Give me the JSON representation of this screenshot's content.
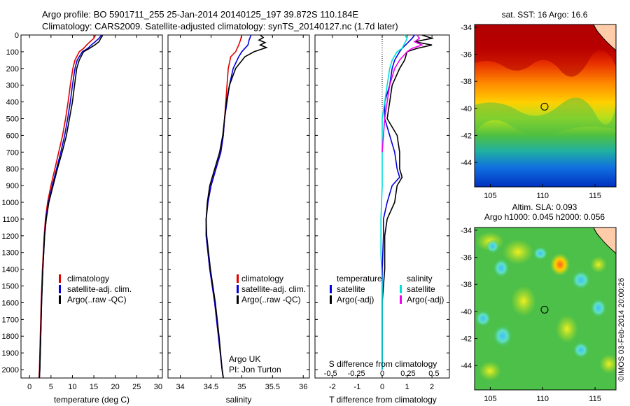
{
  "header": {
    "line1": "Argo profile: BO 5901711_255 25-Jan-2014 20140125_197 39.872S 110.184E",
    "line2": "Climatology: CARS2009. Satellite-adjusted climatology: synTS_20140127.nc (1.7d later)"
  },
  "side_stamp": "©IMOS 03-Feb-2014 20:00:26",
  "chart_data": [
    {
      "type": "line",
      "panel": "temperature",
      "xlabel": "temperature (deg C)",
      "xlim": [
        -2,
        31
      ],
      "ylim": [
        2050,
        0
      ],
      "xticks": [
        "0",
        "5",
        "10",
        "15",
        "20",
        "25",
        "30"
      ],
      "xtick_values": [
        0,
        5,
        10,
        15,
        20,
        25,
        30
      ],
      "yticks": [
        "0",
        "100",
        "200",
        "300",
        "400",
        "500",
        "600",
        "700",
        "800",
        "900",
        "1000",
        "1100",
        "1200",
        "1300",
        "1400",
        "1500",
        "1600",
        "1700",
        "1800",
        "1900",
        "2000"
      ],
      "ytick_values": [
        0,
        100,
        200,
        300,
        400,
        500,
        600,
        700,
        800,
        900,
        1000,
        1100,
        1200,
        1300,
        1400,
        1500,
        1600,
        1700,
        1800,
        1900,
        2000
      ],
      "legend": [
        "climatology",
        "satellite-adj. clim.",
        "Argo(..raw -QC)"
      ],
      "series": [
        {
          "name": "climatology",
          "color": "#e00000",
          "depth": [
            0,
            20,
            40,
            60,
            80,
            100,
            150,
            200,
            300,
            400,
            500,
            600,
            700,
            800,
            900,
            1000,
            1100,
            1200,
            1400,
            1600,
            1800,
            2000,
            2050
          ],
          "values": [
            15.4,
            15.0,
            14.1,
            13.3,
            12.6,
            11.6,
            10.6,
            10.1,
            9.5,
            9.0,
            8.4,
            7.7,
            6.8,
            5.9,
            5.0,
            4.2,
            3.7,
            3.4,
            3.0,
            2.7,
            2.5,
            2.3,
            2.2
          ]
        },
        {
          "name": "satellite-adj. clim.",
          "color": "#0000dd",
          "depth": [
            0,
            20,
            40,
            60,
            80,
            100,
            150,
            200,
            300,
            400,
            500,
            600,
            700,
            800,
            900,
            1000,
            1100,
            1200,
            1400,
            1600,
            1800,
            2000,
            2050
          ],
          "values": [
            16.8,
            16.2,
            15.3,
            14.4,
            13.6,
            12.3,
            11.1,
            10.6,
            10.0,
            9.5,
            8.9,
            8.2,
            7.3,
            6.3,
            5.3,
            4.4,
            3.8,
            3.5,
            3.1,
            2.8,
            2.6,
            2.4,
            2.3
          ]
        },
        {
          "name": "Argo(..raw -QC)",
          "color": "#000000",
          "depth": [
            0,
            10,
            20,
            40,
            60,
            80,
            100,
            150,
            200,
            300,
            400,
            500,
            600,
            700,
            800,
            900,
            1000,
            1100,
            1200,
            1400,
            1600,
            1800,
            2000,
            2050
          ],
          "values": [
            17.0,
            16.9,
            16.6,
            16.2,
            15.2,
            14.0,
            12.6,
            11.6,
            11.0,
            10.5,
            10.0,
            9.3,
            8.6,
            7.6,
            6.5,
            5.5,
            4.5,
            3.9,
            3.5,
            3.1,
            2.8,
            2.6,
            2.4,
            2.3
          ]
        }
      ]
    },
    {
      "type": "line",
      "panel": "salinity",
      "xlabel": "salinity",
      "xlim": [
        33.8,
        36.1
      ],
      "ylim": [
        2050,
        0
      ],
      "xticks": [
        "34",
        "34.5",
        "35",
        "35.5",
        "36"
      ],
      "xtick_values": [
        34,
        34.5,
        35,
        35.5,
        36
      ],
      "legend": [
        "climatology",
        "satellite-adj. clim.",
        "Argo(..raw -QC)"
      ],
      "annotation": [
        "Argo UK",
        "PI: Jon Turton"
      ],
      "series": [
        {
          "name": "climatology",
          "color": "#e00000",
          "depth": [
            0,
            30,
            60,
            100,
            130,
            200,
            300,
            400,
            500,
            600,
            700,
            800,
            900,
            1000,
            1100,
            1200,
            1400,
            1600,
            1800,
            2000,
            2050
          ],
          "values": [
            35.0,
            34.98,
            34.95,
            34.9,
            34.82,
            34.78,
            34.76,
            34.74,
            34.72,
            34.7,
            34.66,
            34.58,
            34.5,
            34.45,
            34.42,
            34.42,
            34.48,
            34.56,
            34.62,
            34.68,
            34.7
          ]
        },
        {
          "name": "satellite-adj. clim.",
          "color": "#0000dd",
          "depth": [
            0,
            30,
            60,
            100,
            130,
            200,
            300,
            400,
            500,
            600,
            700,
            800,
            900,
            1000,
            1100,
            1200,
            1400,
            1600,
            1800,
            2000,
            2050
          ],
          "values": [
            35.15,
            35.12,
            35.1,
            35.0,
            34.95,
            34.86,
            34.8,
            34.76,
            34.72,
            34.7,
            34.66,
            34.58,
            34.5,
            34.45,
            34.42,
            34.42,
            34.48,
            34.56,
            34.62,
            34.68,
            34.7
          ]
        },
        {
          "name": "Argo(..raw -QC)",
          "color": "#000000",
          "depth": [
            0,
            15,
            30,
            45,
            60,
            75,
            90,
            100,
            130,
            200,
            300,
            400,
            500,
            600,
            700,
            800,
            900,
            1000,
            1100,
            1200,
            1400,
            1600,
            1800,
            2000,
            2050
          ],
          "values": [
            35.3,
            35.35,
            35.28,
            35.38,
            35.3,
            35.4,
            35.28,
            35.2,
            35.05,
            34.9,
            34.8,
            34.75,
            34.72,
            34.69,
            34.64,
            34.56,
            34.48,
            34.44,
            34.42,
            34.43,
            34.49,
            34.57,
            34.63,
            34.68,
            34.7
          ]
        }
      ]
    },
    {
      "type": "line",
      "panel": "difference",
      "xlabel": "T difference from climatology",
      "xlabel_top": "S difference from climatology",
      "xlim": [
        -2.7,
        2.7
      ],
      "ylim": [
        2050,
        0
      ],
      "xticks": [
        "-2",
        "-1",
        "0",
        "1",
        "2"
      ],
      "xtick_values": [
        -2,
        -1,
        0,
        1,
        2
      ],
      "s_ticks": [
        "-0.5",
        "-0.25",
        "0",
        "0.25",
        "0.5"
      ],
      "s_tick_values": [
        -0.5,
        -0.25,
        0,
        0.25,
        0.5
      ],
      "legend_left": {
        "title": "temperature",
        "items": [
          "satellite",
          "Argo(-adj)"
        ]
      },
      "legend_right": {
        "title": "salinity",
        "items": [
          "satellite",
          "Argo(-adj)"
        ]
      },
      "series": [
        {
          "name": "temperature satellite",
          "color": "#0000dd",
          "depth": [
            0,
            20,
            50,
            80,
            100,
            150,
            200,
            300,
            400,
            500,
            600,
            700,
            800,
            850,
            900,
            1000,
            1100,
            1200,
            1400,
            1600,
            1800,
            2000
          ],
          "values": [
            1.3,
            1.2,
            1.0,
            0.8,
            0.7,
            0.5,
            0.4,
            0.3,
            0.1,
            0.1,
            0.3,
            0.5,
            0.6,
            0.7,
            0.4,
            0.2,
            0.05,
            0.05,
            0.0,
            0.0,
            0.0,
            0.0
          ]
        },
        {
          "name": "temperature Argo(-adj)",
          "color": "#000000",
          "depth": [
            0,
            20,
            40,
            60,
            80,
            100,
            150,
            200,
            300,
            400,
            500,
            600,
            700,
            800,
            850,
            900,
            1000,
            1100,
            1200,
            1400,
            1600,
            1800,
            2000
          ],
          "values": [
            1.6,
            2.0,
            1.3,
            2.0,
            1.4,
            1.0,
            0.9,
            0.7,
            0.4,
            0.3,
            0.2,
            0.6,
            0.7,
            0.7,
            0.8,
            0.6,
            0.5,
            0.2,
            0.1,
            0.1,
            0.0,
            0.0,
            0.0
          ]
        },
        {
          "name": "salinity satellite",
          "color": "#00dddd",
          "depth": [
            0,
            20,
            50,
            80,
            100,
            150,
            200,
            300,
            400,
            500,
            700,
            900,
            1100,
            1300,
            1500,
            1700,
            1900,
            2000
          ],
          "values": [
            0.9,
            1.0,
            0.9,
            0.8,
            0.6,
            0.4,
            0.3,
            0.2,
            0.1,
            0.0,
            0.0,
            0.0,
            -0.05,
            -0.05,
            0.0,
            0.0,
            0.0,
            0.0
          ]
        },
        {
          "name": "salinity Argo(-adj)",
          "color": "#ee00ee",
          "depth": [
            0,
            20,
            40,
            60,
            80,
            100,
            150,
            200,
            300,
            400,
            500,
            700
          ],
          "values": [
            1.4,
            1.5,
            1.3,
            1.6,
            1.2,
            1.0,
            0.7,
            0.5,
            0.3,
            0.2,
            0.1,
            0.0
          ]
        }
      ]
    }
  ],
  "maps": {
    "sst": {
      "title": "sat. SST: 16 Argo: 16.6",
      "xticks": [
        "105",
        "110",
        "115"
      ],
      "xtick_values": [
        105,
        110,
        115
      ],
      "yticks": [
        "-34",
        "-36",
        "-38",
        "-40",
        "-42",
        "-44"
      ],
      "ytick_values": [
        -34,
        -36,
        -38,
        -40,
        -42,
        -44
      ],
      "lon_range": [
        103.5,
        117
      ],
      "lat_range": [
        -45.8,
        -33.8
      ],
      "marker_lon": 110.18,
      "marker_lat": -39.87
    },
    "sla": {
      "title_line1": "Altim. SLA: 0.093",
      "title_line2": "Argo h1000: 0.045 h2000: 0.056",
      "xticks": [
        "105",
        "110",
        "115"
      ],
      "xtick_values": [
        105,
        110,
        115
      ],
      "yticks": [
        "-34",
        "-36",
        "-38",
        "-40",
        "-42",
        "-44"
      ],
      "ytick_values": [
        -34,
        -36,
        -38,
        -40,
        -42,
        -44
      ],
      "lon_range": [
        103.5,
        117
      ],
      "lat_range": [
        -45.8,
        -33.8
      ],
      "marker_lon": 110.18,
      "marker_lat": -39.87
    }
  }
}
